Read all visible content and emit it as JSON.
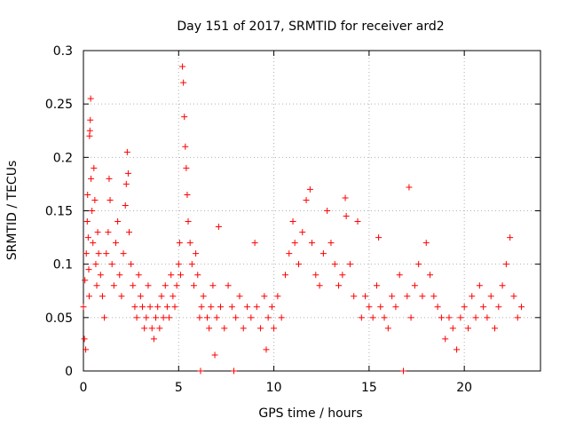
{
  "chart_data": {
    "type": "scatter",
    "title": "Day 151 of 2017, SRMTID for receiver ard2",
    "xlabel": "GPS time / hours",
    "ylabel": "SRMTID / TECUs",
    "xlim": [
      0,
      24
    ],
    "ylim": [
      0,
      0.3
    ],
    "x_ticks": [
      0,
      5,
      10,
      15,
      20
    ],
    "y_ticks": [
      0,
      0.05,
      0.1,
      0.15,
      0.2,
      0.25,
      0.3
    ],
    "x_tick_labels": [
      "0",
      "5",
      "10",
      "15",
      "20"
    ],
    "y_tick_labels": [
      "0",
      "0.05",
      "0.1",
      "0.15",
      "0.2",
      "0.25",
      "0.3"
    ],
    "grid": true,
    "marker": "+",
    "color": "#ff0000",
    "series": [
      {
        "name": "SRMTID",
        "points": [
          [
            0.0,
            0.06
          ],
          [
            0.05,
            0.03
          ],
          [
            0.08,
            0.085
          ],
          [
            0.12,
            0.02
          ],
          [
            0.15,
            0.11
          ],
          [
            0.2,
            0.14
          ],
          [
            0.22,
            0.165
          ],
          [
            0.25,
            0.125
          ],
          [
            0.28,
            0.095
          ],
          [
            0.3,
            0.07
          ],
          [
            0.32,
            0.22
          ],
          [
            0.34,
            0.225
          ],
          [
            0.36,
            0.235
          ],
          [
            0.38,
            0.255
          ],
          [
            0.4,
            0.18
          ],
          [
            0.45,
            0.15
          ],
          [
            0.5,
            0.12
          ],
          [
            0.55,
            0.19
          ],
          [
            0.6,
            0.16
          ],
          [
            0.65,
            0.1
          ],
          [
            0.7,
            0.08
          ],
          [
            0.75,
            0.13
          ],
          [
            0.8,
            0.11
          ],
          [
            0.9,
            0.09
          ],
          [
            1.0,
            0.07
          ],
          [
            1.1,
            0.05
          ],
          [
            1.2,
            0.11
          ],
          [
            1.3,
            0.13
          ],
          [
            1.35,
            0.18
          ],
          [
            1.4,
            0.16
          ],
          [
            1.5,
            0.1
          ],
          [
            1.6,
            0.08
          ],
          [
            1.7,
            0.12
          ],
          [
            1.8,
            0.14
          ],
          [
            1.9,
            0.09
          ],
          [
            2.0,
            0.07
          ],
          [
            2.1,
            0.11
          ],
          [
            2.2,
            0.155
          ],
          [
            2.25,
            0.175
          ],
          [
            2.3,
            0.205
          ],
          [
            2.35,
            0.185
          ],
          [
            2.4,
            0.13
          ],
          [
            2.5,
            0.1
          ],
          [
            2.6,
            0.08
          ],
          [
            2.7,
            0.06
          ],
          [
            2.8,
            0.05
          ],
          [
            2.9,
            0.09
          ],
          [
            3.0,
            0.07
          ],
          [
            3.1,
            0.06
          ],
          [
            3.2,
            0.04
          ],
          [
            3.3,
            0.05
          ],
          [
            3.4,
            0.08
          ],
          [
            3.5,
            0.06
          ],
          [
            3.6,
            0.04
          ],
          [
            3.7,
            0.03
          ],
          [
            3.8,
            0.05
          ],
          [
            3.9,
            0.06
          ],
          [
            4.0,
            0.04
          ],
          [
            4.1,
            0.07
          ],
          [
            4.2,
            0.05
          ],
          [
            4.3,
            0.08
          ],
          [
            4.4,
            0.06
          ],
          [
            4.5,
            0.05
          ],
          [
            4.6,
            0.09
          ],
          [
            4.7,
            0.07
          ],
          [
            4.8,
            0.06
          ],
          [
            4.9,
            0.08
          ],
          [
            5.0,
            0.1
          ],
          [
            5.05,
            0.12
          ],
          [
            5.1,
            0.09
          ],
          [
            5.2,
            0.285
          ],
          [
            5.25,
            0.27
          ],
          [
            5.3,
            0.238
          ],
          [
            5.35,
            0.21
          ],
          [
            5.4,
            0.19
          ],
          [
            5.45,
            0.165
          ],
          [
            5.5,
            0.14
          ],
          [
            5.6,
            0.12
          ],
          [
            5.7,
            0.1
          ],
          [
            5.8,
            0.08
          ],
          [
            5.9,
            0.11
          ],
          [
            6.0,
            0.09
          ],
          [
            6.1,
            0.05
          ],
          [
            6.15,
            0.0
          ],
          [
            6.2,
            0.06
          ],
          [
            6.3,
            0.07
          ],
          [
            6.5,
            0.05
          ],
          [
            6.6,
            0.04
          ],
          [
            6.7,
            0.06
          ],
          [
            6.8,
            0.08
          ],
          [
            6.9,
            0.015
          ],
          [
            7.0,
            0.05
          ],
          [
            7.1,
            0.135
          ],
          [
            7.2,
            0.06
          ],
          [
            7.4,
            0.04
          ],
          [
            7.6,
            0.08
          ],
          [
            7.8,
            0.06
          ],
          [
            7.9,
            0.0
          ],
          [
            8.0,
            0.05
          ],
          [
            8.2,
            0.07
          ],
          [
            8.4,
            0.04
          ],
          [
            8.6,
            0.06
          ],
          [
            8.8,
            0.05
          ],
          [
            9.0,
            0.12
          ],
          [
            9.1,
            0.06
          ],
          [
            9.3,
            0.04
          ],
          [
            9.5,
            0.07
          ],
          [
            9.6,
            0.02
          ],
          [
            9.7,
            0.05
          ],
          [
            9.9,
            0.06
          ],
          [
            10.0,
            0.04
          ],
          [
            10.2,
            0.07
          ],
          [
            10.4,
            0.05
          ],
          [
            10.6,
            0.09
          ],
          [
            10.8,
            0.11
          ],
          [
            11.0,
            0.14
          ],
          [
            11.1,
            0.12
          ],
          [
            11.3,
            0.1
          ],
          [
            11.5,
            0.13
          ],
          [
            11.7,
            0.16
          ],
          [
            11.9,
            0.17
          ],
          [
            12.0,
            0.12
          ],
          [
            12.2,
            0.09
          ],
          [
            12.4,
            0.08
          ],
          [
            12.6,
            0.11
          ],
          [
            12.8,
            0.15
          ],
          [
            13.0,
            0.12
          ],
          [
            13.2,
            0.1
          ],
          [
            13.4,
            0.08
          ],
          [
            13.6,
            0.09
          ],
          [
            13.75,
            0.162
          ],
          [
            13.8,
            0.145
          ],
          [
            14.0,
            0.1
          ],
          [
            14.2,
            0.07
          ],
          [
            14.4,
            0.14
          ],
          [
            14.6,
            0.05
          ],
          [
            14.8,
            0.07
          ],
          [
            15.0,
            0.06
          ],
          [
            15.2,
            0.05
          ],
          [
            15.4,
            0.08
          ],
          [
            15.5,
            0.125
          ],
          [
            15.6,
            0.06
          ],
          [
            15.8,
            0.05
          ],
          [
            16.0,
            0.04
          ],
          [
            16.2,
            0.07
          ],
          [
            16.4,
            0.06
          ],
          [
            16.6,
            0.09
          ],
          [
            16.8,
            0.0
          ],
          [
            17.0,
            0.07
          ],
          [
            17.1,
            0.172
          ],
          [
            17.2,
            0.05
          ],
          [
            17.4,
            0.08
          ],
          [
            17.6,
            0.1
          ],
          [
            17.8,
            0.07
          ],
          [
            18.0,
            0.12
          ],
          [
            18.2,
            0.09
          ],
          [
            18.4,
            0.07
          ],
          [
            18.6,
            0.06
          ],
          [
            18.8,
            0.05
          ],
          [
            19.0,
            0.03
          ],
          [
            19.2,
            0.05
          ],
          [
            19.4,
            0.04
          ],
          [
            19.6,
            0.02
          ],
          [
            19.8,
            0.05
          ],
          [
            20.0,
            0.06
          ],
          [
            20.2,
            0.04
          ],
          [
            20.4,
            0.07
          ],
          [
            20.6,
            0.05
          ],
          [
            20.8,
            0.08
          ],
          [
            21.0,
            0.06
          ],
          [
            21.2,
            0.05
          ],
          [
            21.4,
            0.07
          ],
          [
            21.6,
            0.04
          ],
          [
            21.8,
            0.06
          ],
          [
            22.0,
            0.08
          ],
          [
            22.2,
            0.1
          ],
          [
            22.4,
            0.125
          ],
          [
            22.6,
            0.07
          ],
          [
            22.8,
            0.05
          ],
          [
            23.0,
            0.06
          ]
        ]
      }
    ]
  }
}
